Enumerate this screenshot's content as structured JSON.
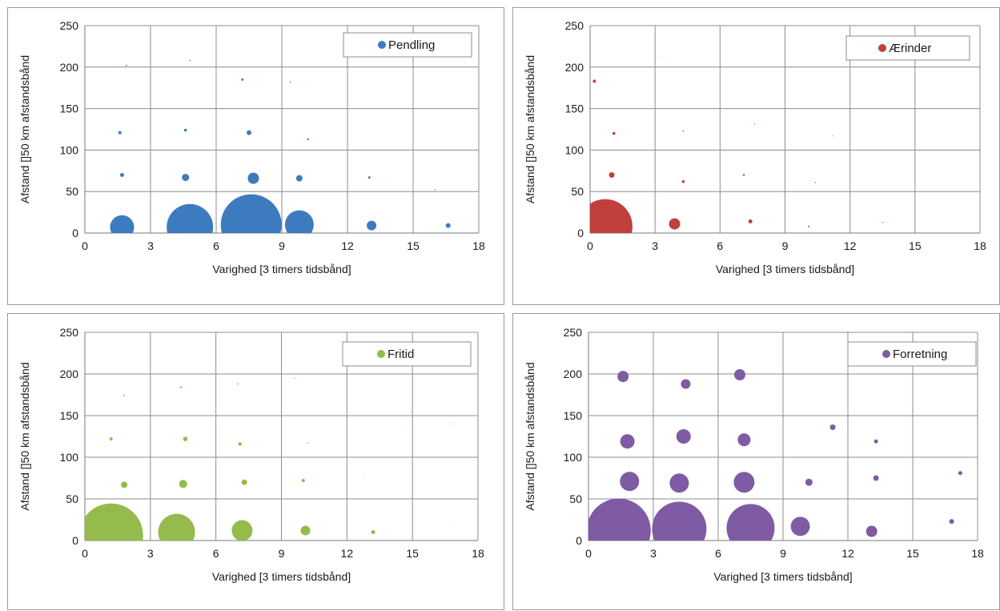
{
  "chart_data": [
    {
      "type": "scatter",
      "series": [
        {
          "name": "Pendling",
          "color": "#3d7bbf",
          "points": [
            {
              "x": 1.7,
              "y": 7,
              "r": 15
            },
            {
              "x": 4.8,
              "y": 7,
              "r": 29
            },
            {
              "x": 7.6,
              "y": 10,
              "r": 38
            },
            {
              "x": 9.8,
              "y": 10,
              "r": 18
            },
            {
              "x": 13.1,
              "y": 9,
              "r": 6
            },
            {
              "x": 16.6,
              "y": 9,
              "r": 3
            },
            {
              "x": 1.7,
              "y": 70,
              "r": 2.5
            },
            {
              "x": 4.6,
              "y": 67,
              "r": 4.5
            },
            {
              "x": 7.7,
              "y": 66,
              "r": 7
            },
            {
              "x": 9.8,
              "y": 66,
              "r": 4
            },
            {
              "x": 13.0,
              "y": 67,
              "r": 1.5
            },
            {
              "x": 16.0,
              "y": 52,
              "r": 0.8
            },
            {
              "x": 1.6,
              "y": 121,
              "r": 2
            },
            {
              "x": 4.6,
              "y": 124,
              "r": 1.8
            },
            {
              "x": 7.5,
              "y": 121,
              "r": 3
            },
            {
              "x": 10.2,
              "y": 113,
              "r": 1.2
            },
            {
              "x": 7.2,
              "y": 185,
              "r": 1.5
            },
            {
              "x": 9.4,
              "y": 182,
              "r": 0.8
            },
            {
              "x": 1.9,
              "y": 202,
              "r": 0.9
            },
            {
              "x": 4.8,
              "y": 208,
              "r": 0.8
            }
          ]
        }
      ],
      "xlim": [
        0,
        18
      ],
      "ylim": [
        0,
        250
      ],
      "xticks": [
        0,
        3,
        6,
        9,
        12,
        15,
        18
      ],
      "yticks": [
        0,
        50,
        100,
        150,
        200,
        250
      ],
      "xlabel": "Varighed [3 timers tidsbånd]",
      "ylabel": "Afstand []50 km afstandsbånd",
      "grid": true,
      "legend": "top-right"
    },
    {
      "type": "scatter",
      "series": [
        {
          "name": "Ærinder",
          "color": "#c0403c",
          "points": [
            {
              "x": 0.7,
              "y": 8,
              "r": 34
            },
            {
              "x": 3.9,
              "y": 11,
              "r": 7
            },
            {
              "x": 7.4,
              "y": 14,
              "r": 2.5
            },
            {
              "x": 10.1,
              "y": 8,
              "r": 1
            },
            {
              "x": 13.5,
              "y": 13,
              "r": 0.7
            },
            {
              "x": 1.0,
              "y": 70,
              "r": 3.5
            },
            {
              "x": 4.3,
              "y": 62,
              "r": 1.8
            },
            {
              "x": 7.1,
              "y": 70,
              "r": 1.2
            },
            {
              "x": 10.4,
              "y": 61,
              "r": 0.7
            },
            {
              "x": 1.1,
              "y": 120,
              "r": 1.8
            },
            {
              "x": 4.3,
              "y": 123,
              "r": 0.8
            },
            {
              "x": 7.6,
              "y": 131,
              "r": 0.6
            },
            {
              "x": 11.2,
              "y": 117,
              "r": 0.5
            },
            {
              "x": 0.2,
              "y": 183,
              "r": 2
            },
            {
              "x": 3.4,
              "y": 212,
              "r": 0.4
            }
          ]
        }
      ],
      "xlim": [
        0,
        18
      ],
      "ylim": [
        0,
        250
      ],
      "xticks": [
        0,
        3,
        6,
        9,
        12,
        15,
        18
      ],
      "yticks": [
        0,
        50,
        100,
        150,
        200,
        250
      ],
      "xlabel": "Varighed [3 timers tidsbånd]",
      "ylabel": "Afstand []50 km afstandsbånd",
      "grid": true,
      "legend": "top-right"
    },
    {
      "type": "scatter",
      "series": [
        {
          "name": "Fritid",
          "color": "#94bb4b",
          "points": [
            {
              "x": 1.2,
              "y": 6,
              "r": 40
            },
            {
              "x": 4.2,
              "y": 10,
              "r": 23
            },
            {
              "x": 7.2,
              "y": 12,
              "r": 13
            },
            {
              "x": 10.1,
              "y": 12,
              "r": 6
            },
            {
              "x": 13.2,
              "y": 10,
              "r": 2.5
            },
            {
              "x": 16.9,
              "y": 22,
              "r": 0.4
            },
            {
              "x": 1.8,
              "y": 67,
              "r": 4
            },
            {
              "x": 4.5,
              "y": 68,
              "r": 5
            },
            {
              "x": 7.3,
              "y": 70,
              "r": 3.5
            },
            {
              "x": 10.0,
              "y": 72,
              "r": 2
            },
            {
              "x": 12.8,
              "y": 78,
              "r": 0.5
            },
            {
              "x": 1.2,
              "y": 122,
              "r": 2
            },
            {
              "x": 4.6,
              "y": 122,
              "r": 2.8
            },
            {
              "x": 7.1,
              "y": 116,
              "r": 2.2
            },
            {
              "x": 10.2,
              "y": 117,
              "r": 0.8
            },
            {
              "x": 14.5,
              "y": 137,
              "r": 0.4
            },
            {
              "x": 16.7,
              "y": 140,
              "r": 0.5
            },
            {
              "x": 1.8,
              "y": 174,
              "r": 1
            },
            {
              "x": 4.4,
              "y": 184,
              "r": 1.2
            },
            {
              "x": 7.0,
              "y": 188,
              "r": 1
            },
            {
              "x": 9.6,
              "y": 195,
              "r": 0.7
            }
          ]
        }
      ],
      "xlim": [
        0,
        18
      ],
      "ylim": [
        0,
        250
      ],
      "xticks": [
        0,
        3,
        6,
        9,
        12,
        15,
        18
      ],
      "yticks": [
        0,
        50,
        100,
        150,
        200,
        250
      ],
      "xlabel": "Varighed [3 timers tidsbånd]",
      "ylabel": "Afstand []50 km afstandsbånd",
      "grid": true,
      "legend": "top-right"
    },
    {
      "type": "scatter",
      "series": [
        {
          "name": "Forretning",
          "color": "#7e5ba3",
          "points": [
            {
              "x": 1.4,
              "y": 12,
              "r": 40
            },
            {
              "x": 4.2,
              "y": 14,
              "r": 34
            },
            {
              "x": 7.5,
              "y": 15,
              "r": 30
            },
            {
              "x": 9.8,
              "y": 17,
              "r": 12
            },
            {
              "x": 13.1,
              "y": 11,
              "r": 7
            },
            {
              "x": 16.8,
              "y": 23,
              "r": 3
            },
            {
              "x": 1.9,
              "y": 71,
              "r": 12
            },
            {
              "x": 4.2,
              "y": 69,
              "r": 12
            },
            {
              "x": 7.2,
              "y": 70,
              "r": 13
            },
            {
              "x": 10.2,
              "y": 70,
              "r": 4.5
            },
            {
              "x": 13.3,
              "y": 75,
              "r": 3.5
            },
            {
              "x": 17.2,
              "y": 81,
              "r": 2.5
            },
            {
              "x": 1.8,
              "y": 119,
              "r": 9
            },
            {
              "x": 4.4,
              "y": 125,
              "r": 9
            },
            {
              "x": 7.2,
              "y": 121,
              "r": 8
            },
            {
              "x": 11.3,
              "y": 136,
              "r": 3.5
            },
            {
              "x": 13.3,
              "y": 119,
              "r": 2.5
            },
            {
              "x": 1.6,
              "y": 197,
              "r": 7
            },
            {
              "x": 4.5,
              "y": 188,
              "r": 6
            },
            {
              "x": 7.0,
              "y": 199,
              "r": 7
            }
          ]
        }
      ],
      "xlim": [
        0,
        18
      ],
      "ylim": [
        0,
        250
      ],
      "xticks": [
        0,
        3,
        6,
        9,
        12,
        15,
        18
      ],
      "yticks": [
        0,
        50,
        100,
        150,
        200,
        250
      ],
      "xlabel": "Varighed [3 timers tidsbånd]",
      "ylabel": "Afstand []50 km afstandsbånd",
      "grid": true,
      "legend": "top-right"
    }
  ]
}
